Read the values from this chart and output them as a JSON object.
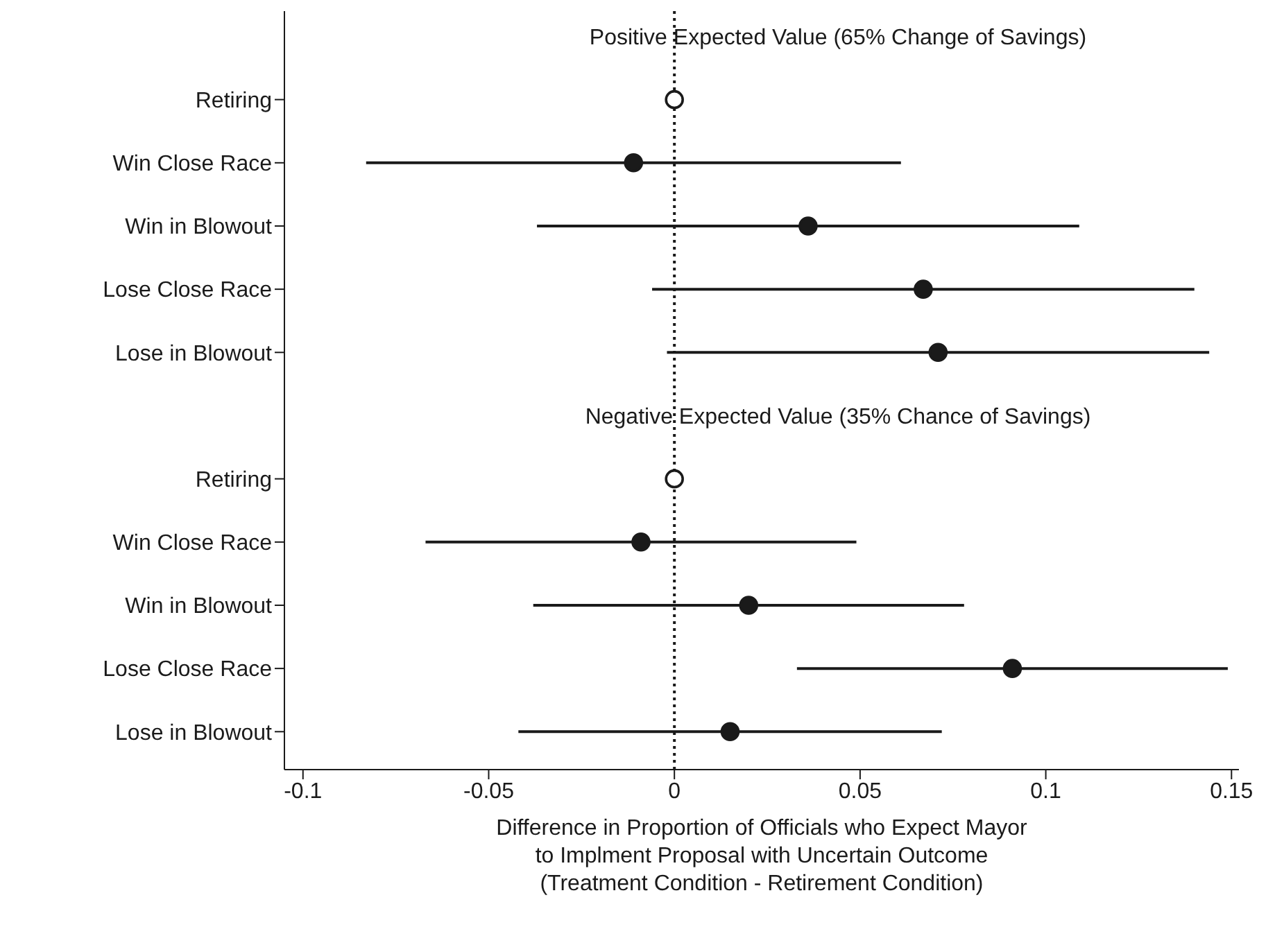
{
  "chart_data": {
    "type": "scatter",
    "orientation": "horizontal",
    "categories": [
      null,
      "Retiring",
      "Win Close Race",
      "Win in Blowout",
      "Lose Close Race",
      "Lose in Blowout",
      null,
      "Retiring",
      "Win Close Race",
      "Win in Blowout",
      "Lose Close Race",
      "Lose in Blowout"
    ],
    "series": [
      {
        "color": "#1a1a1a",
        "values": [
          null,
          null,
          -0.011,
          0.036,
          0.067,
          0.071,
          null,
          null,
          -0.009,
          0.02,
          0.091,
          0.015
        ],
        "errors": [
          null,
          null,
          0.072,
          0.073,
          0.073,
          0.073,
          null,
          null,
          0.058,
          0.058,
          0.058,
          0.057
        ]
      },
      {
        "color": "#ffffff",
        "values": [
          null,
          0,
          null,
          null,
          null,
          null,
          null,
          0,
          null,
          null,
          null,
          null
        ]
      }
    ],
    "xlim": [
      -0.105,
      0.152
    ],
    "xticks": [
      -0.1,
      -0.05,
      0,
      0.05,
      0.1,
      0.15
    ],
    "xlabel": "Difference in Proportion of Officials who Expect Mayor\nto Implment Proposal with Uncertain Outcome\n(Treatment Condition - Retirement Condition)",
    "annotations": [
      "Positive Expected Value (65% Change of Savings)",
      "Negative Expected Value (35% Chance of Savings)"
    ],
    "ref_lines": [
      {
        "axis": "x",
        "value": 0,
        "color": "#1a1a1a",
        "line_style": "dotted"
      }
    ],
    "marker": "circle",
    "grid": false,
    "legend": false
  }
}
